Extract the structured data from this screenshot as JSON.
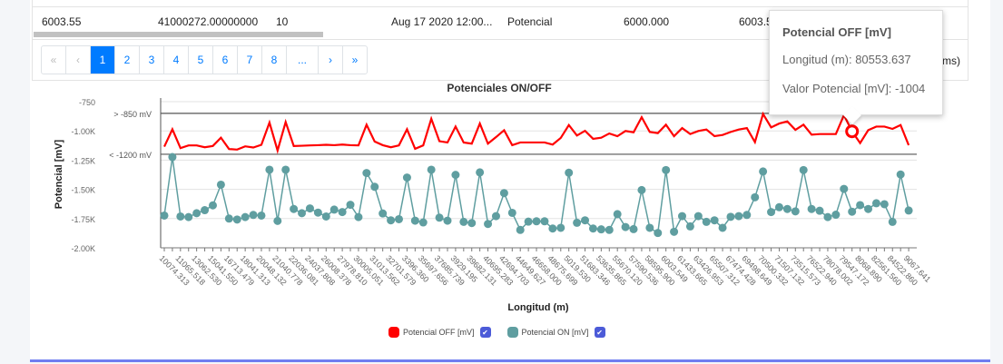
{
  "table": {
    "row": [
      "6003.55",
      "41000272.00000000",
      "10",
      "Aug 17 2020 12:00...",
      "Potencial",
      "6000.000",
      "6003.5"
    ]
  },
  "pagination": {
    "first": "«",
    "prev": "‹",
    "pages": [
      "1",
      "2",
      "3",
      "4",
      "5",
      "6",
      "7",
      "8",
      "..."
    ],
    "next": "›",
    "last": "»",
    "active": "1",
    "info_partial": "ms)"
  },
  "tooltip": {
    "title": "Potencial OFF [mV]",
    "line1": "Longitud (m): 80553.637",
    "line2": "Valor Potencial [mV]: -1004"
  },
  "legend": [
    {
      "label": "Potencial OFF [mV]",
      "color": "#ff0000",
      "checked": true
    },
    {
      "label": "Potencial ON [mV]",
      "color": "#5f9ea0",
      "checked": true
    }
  ],
  "chart_data": {
    "type": "line",
    "title": "Potenciales ON/OFF",
    "xlabel": "Longitud (m)",
    "ylabel": "Potencial [mV]",
    "ylim": [
      -2000,
      -750
    ],
    "yticks": [
      "-750",
      "-1.00K",
      "-1.25K",
      "-1.50K",
      "-1.75K",
      "-2.00K"
    ],
    "ytick_values": [
      -750,
      -1000,
      -1250,
      -1500,
      -1750,
      -2000
    ],
    "grid": true,
    "reference_lines": [
      {
        "label": "> -850 mV",
        "value": -850
      },
      {
        "label": "< -1200 mV",
        "value": -1200
      }
    ],
    "x_labels_every_other_point": [
      "10074.313",
      "11065.518",
      "13062.530",
      "15041.550",
      "16713.479",
      "18041.313",
      "20048.132",
      "21040.778",
      "22036.081",
      "24037.808",
      "26008.378",
      "27978.810",
      "30005.051",
      "31013.562",
      "32701.579",
      "3396.360",
      "35697.656",
      "37685.739",
      "3929.195",
      "39682.131",
      "40695.283",
      "42694.703",
      "44649.627",
      "46658.000",
      "48675.699",
      "5019.530",
      "51683.346",
      "53635.865",
      "55670.120",
      "57590.536",
      "58595.900",
      "6003.549",
      "61433.665",
      "63426.953",
      "65507.312",
      "67474.428",
      "69498.649",
      "70500.332",
      "71507.132",
      "73515.573",
      "76522.940",
      "78078.002",
      "79547.172",
      "8068.890",
      "82561.560",
      "84522.860",
      "9067.641"
    ],
    "series": [
      {
        "name": "Potencial OFF [mV]",
        "color": "#ff0000",
        "values": [
          -1135,
          -986,
          -1147,
          -1124,
          -1124,
          -1140,
          -1129,
          -1058,
          -1155,
          -1160,
          -1132,
          -1142,
          -1119,
          -929,
          -1168,
          -924,
          -1129,
          -1127,
          -1124,
          -1122,
          -1119,
          -1122,
          -1117,
          -1122,
          -1124,
          -947,
          -1091,
          -1122,
          -1140,
          -1124,
          -986,
          -1153,
          -1124,
          -896,
          -1088,
          -1099,
          -963,
          -1099,
          -1109,
          -937,
          -1109,
          -1053,
          -994,
          -1122,
          -1099,
          -1099,
          -1099,
          -1099,
          -1117,
          -1060,
          -950,
          -1040,
          -999,
          -1068,
          -1058,
          -1022,
          -1045,
          -1001,
          -1012,
          -883,
          -1009,
          -1019,
          -947,
          -1045,
          -976,
          -1027,
          -1001,
          -988,
          -1045,
          -1035,
          -1009,
          -988,
          -976,
          -1096,
          -855,
          -970,
          -937,
          -919,
          -991,
          -947,
          -1032,
          -1027,
          -1027,
          -1027,
          -865,
          -1004,
          -1104,
          -994,
          -963,
          -963,
          -983,
          -950,
          -1122
        ]
      },
      {
        "name": "Potencial ON [mV]",
        "color": "#5f9ea0",
        "values": [
          -1724,
          -1224,
          -1732,
          -1737,
          -1704,
          -1678,
          -1637,
          -1460,
          -1750,
          -1758,
          -1737,
          -1719,
          -1724,
          -1332,
          -1770,
          -1332,
          -1668,
          -1704,
          -1663,
          -1699,
          -1732,
          -1673,
          -1694,
          -1632,
          -1737,
          -1360,
          -1478,
          -1706,
          -1765,
          -1755,
          -1399,
          -1768,
          -1783,
          -1332,
          -1742,
          -1768,
          -1376,
          -1778,
          -1788,
          -1355,
          -1796,
          -1729,
          -1532,
          -1701,
          -1847,
          -1776,
          -1773,
          -1773,
          -1835,
          -1829,
          -1358,
          -1786,
          -1765,
          -1835,
          -1842,
          -1847,
          -1712,
          -1822,
          -1840,
          -1506,
          -1829,
          -1873,
          -1335,
          -1863,
          -1729,
          -1817,
          -1729,
          -1778,
          -1765,
          -1829,
          -1735,
          -1729,
          -1719,
          -1568,
          -1347,
          -1694,
          -1653,
          -1668,
          -1688,
          -1335,
          -1668,
          -1683,
          -1737,
          -1717,
          -1496,
          -1691,
          -1635,
          -1668,
          -1619,
          -1627,
          -1778,
          -1373,
          -1681
        ]
      }
    ],
    "highlighted_point": {
      "series": "Potencial OFF [mV]",
      "index": 85
    },
    "legend_position": "bottom"
  }
}
